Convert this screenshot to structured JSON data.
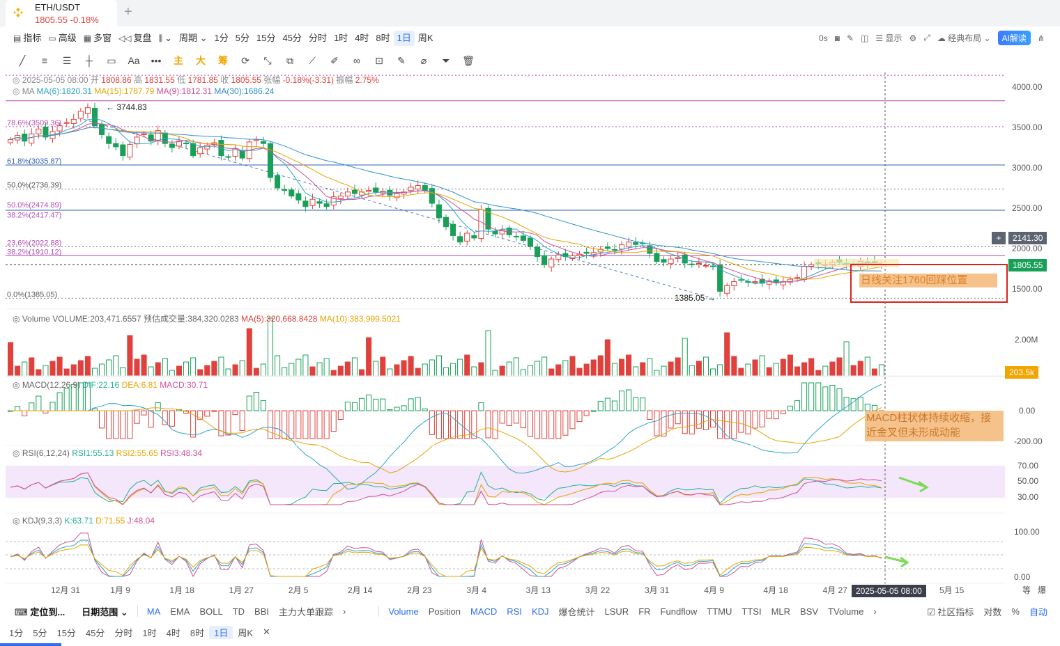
{
  "tab": {
    "symbol": "ETH/USDT",
    "price": "1805.55",
    "change": "-0.18%"
  },
  "toolbar": {
    "items": [
      "指标",
      "高级",
      "多窗",
      "复盘"
    ],
    "period_label": "周期",
    "intervals": [
      "1分",
      "5分",
      "15分",
      "45分",
      "分时",
      "1时",
      "4时",
      "8时",
      "1日",
      "周K"
    ],
    "active_interval": "1日"
  },
  "right_tools": {
    "countdown": "0s",
    "display": "显示",
    "layout": "经典布局",
    "ai": "AI解读"
  },
  "draw_tools": {
    "text": "Aa",
    "main": "主",
    "big": "大",
    "chip": "筹"
  },
  "ohlc": {
    "date": "2025-05-05 08:00",
    "open_label": "开",
    "open": "1808.86",
    "high_label": "高",
    "high": "1831.55",
    "low_label": "低",
    "low": "1781.85",
    "close_label": "收",
    "close": "1805.55",
    "chg_label": "张幅",
    "chg": "-0.18%(-3.31)",
    "amp_label": "振幅",
    "amp": "2.75%"
  },
  "ma": {
    "ma6": "MA(6):1820.31",
    "ma15": "MA(15):1787.79",
    "ma9": "MA(9):1812.31",
    "ma30": "MA(30):1686.24"
  },
  "fib_labels": [
    "78.6%(3509.36)",
    "61.8%(3035.87)",
    "50.0%(2736.39)",
    "50.0%(2474.89)",
    "38.2%(2417.47)",
    "23.6%(2022.88)",
    "38.2%(1910.12)",
    "0.0%(1385.05)"
  ],
  "price_axis": [
    "4000.00",
    "3500.00",
    "3000.00",
    "2500.00",
    "2000.00",
    "1500.00"
  ],
  "price_tags": {
    "crosshair": "2141.30",
    "last": "1805.55",
    "high_mark": "3744.83",
    "low_mark": "1385.05"
  },
  "volume": {
    "title": "Volume",
    "vol": "VOLUME:203,471.6557",
    "est": "预估成交量:384,320.0283",
    "ma5": "MA(5):320,668.8428",
    "ma10": "MA(10):383,999.5021",
    "axis": "2.00M",
    "tag": "203.5k"
  },
  "macd": {
    "title": "MACD(12,26,9)",
    "dif": "DIF:22.16",
    "dea": "DEA:6.81",
    "macd": "MACD:30.71",
    "axis": [
      "0.00",
      "-200.00"
    ]
  },
  "rsi": {
    "title": "RSI(6,12,24)",
    "r1": "RSI1:55.13",
    "r2": "RSI2:55.65",
    "r3": "RSI3:48.34",
    "axis": [
      "70.00",
      "50.00",
      "30.00"
    ]
  },
  "kdj": {
    "title": "KDJ(9,3,3)",
    "k": "K:63.71",
    "d": "D:71.55",
    "j": "J:48.04",
    "axis": [
      "100.00",
      "0.00"
    ]
  },
  "date_axis": [
    "12月 31",
    "1月 9",
    "1月 18",
    "1月 27",
    "2月 5",
    "2月 14",
    "2月 23",
    "3月 4",
    "3月 13",
    "3月 22",
    "3月 31",
    "4月 9",
    "4月 18",
    "4月 27",
    "5月 15"
  ],
  "date_cursor": "2025-05-05 08:00",
  "date_extra": [
    "等",
    "爆"
  ],
  "annotations": {
    "note1": "日线关注1760回踩位置",
    "note2_line1": "MACD柱状体持续收缩，接",
    "note2_line2": "近金叉但未形成动能"
  },
  "bottom": {
    "locate": "定位到...",
    "range": "日期范围",
    "main_inds": [
      "MA",
      "EMA",
      "BOLL",
      "TD",
      "BBI",
      "主力大单跟踪"
    ],
    "sub_inds": [
      "Volume",
      "Position",
      "MACD",
      "RSI",
      "KDJ",
      "爆仓统计",
      "LSUR",
      "FR",
      "Fundflow",
      "TTMU",
      "TTSI",
      "MLR",
      "BSV",
      "TVolume"
    ],
    "community": "社区指标",
    "log": "对数",
    "pct": "%",
    "auto": "自动",
    "intervals": [
      "1分",
      "5分",
      "15分",
      "45分",
      "分时",
      "1时",
      "4时",
      "8时",
      "1日",
      "周K"
    ],
    "active": "1日"
  },
  "chart_data": {
    "type": "candlestick",
    "title": "ETH/USDT 1日",
    "ylim": [
      1300,
      4150
    ],
    "closes": [
      3350,
      3400,
      3330,
      3420,
      3480,
      3380,
      3450,
      3520,
      3560,
      3600,
      3700,
      3744,
      3520,
      3410,
      3300,
      3260,
      3150,
      3290,
      3380,
      3420,
      3330,
      3460,
      3300,
      3250,
      3330,
      3300,
      3150,
      3250,
      3280,
      3310,
      3150,
      3130,
      3240,
      3120,
      3320,
      3350,
      3300,
      2880,
      2750,
      2720,
      2650,
      2600,
      2520,
      2610,
      2560,
      2520,
      2640,
      2650,
      2700,
      2680,
      2700,
      2720,
      2700,
      2710,
      2660,
      2680,
      2700,
      2760,
      2780,
      2720,
      2560,
      2380,
      2270,
      2160,
      2080,
      2190,
      2130,
      2480,
      2240,
      2180,
      2230,
      2170,
      2150,
      2100,
      2030,
      1900,
      1800,
      1870,
      1920,
      1900,
      1910,
      1930,
      1940,
      1950,
      1990,
      2000,
      1980,
      2050,
      2080,
      2050,
      2060,
      1940,
      1840,
      1830,
      1870,
      1890,
      1820,
      1800,
      1820,
      1790,
      1780,
      1470,
      1540,
      1590,
      1610,
      1580,
      1590,
      1570,
      1600,
      1580,
      1590,
      1620,
      1640,
      1780,
      1800,
      1810,
      1800,
      1830,
      1830,
      1800,
      1810,
      1840,
      1820,
      1830,
      1806
    ],
    "volume_ma5": "320,668.8428",
    "volume_current": "203,471.6557",
    "macd": {
      "dif": 22.16,
      "dea": 6.81,
      "hist": 30.71
    },
    "rsi": {
      "rsi1": 55.13,
      "rsi2": 55.65,
      "rsi3": 48.34
    },
    "kdj": {
      "k": 63.71,
      "d": 71.55,
      "j": 48.04
    }
  }
}
